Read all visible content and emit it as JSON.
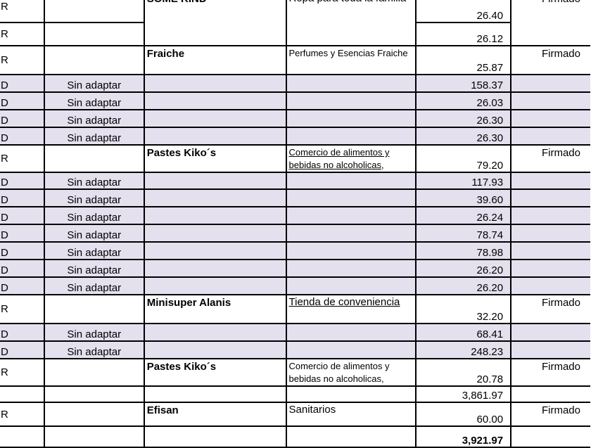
{
  "colors": {
    "shaded_row": "#e4e0ee",
    "border": "#000000"
  },
  "rows": [
    {
      "type": "R",
      "adapt": "",
      "name": "SOME KIND",
      "desc": "Ropa para toda la familia",
      "amount": "26.40",
      "status": "Firmado"
    },
    {
      "type": "R",
      "adapt": "",
      "amount": "26.12",
      "continues_above": true
    },
    {
      "type": "R",
      "adapt": "",
      "name": "Fraiche",
      "desc": "Perfumes y Esencias Fraiche",
      "amount": "25.87",
      "status": "Firmado"
    },
    {
      "type": "D",
      "adapt": "Sin adaptar",
      "name": "",
      "desc": "",
      "amount": "158.37",
      "status": "",
      "shaded": true
    },
    {
      "type": "D",
      "adapt": "Sin adaptar",
      "name": "",
      "desc": "",
      "amount": "26.03",
      "status": "",
      "shaded": true
    },
    {
      "type": "D",
      "adapt": "Sin adaptar",
      "name": "",
      "desc": "",
      "amount": "26.30",
      "status": "",
      "shaded": true
    },
    {
      "type": "D",
      "adapt": "Sin adaptar",
      "name": "",
      "desc": "",
      "amount": "26.30",
      "status": "",
      "shaded": true
    },
    {
      "type": "R",
      "adapt": "",
      "name": "Pastes Kiko´s",
      "desc": "Comercio de alimentos y bebidas no alcoholicas,",
      "amount": "79.20",
      "status": "Firmado"
    },
    {
      "type": "D",
      "adapt": "Sin adaptar",
      "name": "",
      "desc": "",
      "amount": "117.93",
      "status": "",
      "shaded": true
    },
    {
      "type": "D",
      "adapt": "Sin adaptar",
      "name": "",
      "desc": "",
      "amount": "39.60",
      "status": "",
      "shaded": true
    },
    {
      "type": "D",
      "adapt": "Sin adaptar",
      "name": "",
      "desc": "",
      "amount": "26.24",
      "status": "",
      "shaded": true
    },
    {
      "type": "D",
      "adapt": "Sin adaptar",
      "name": "",
      "desc": "",
      "amount": "78.74",
      "status": "",
      "shaded": true
    },
    {
      "type": "D",
      "adapt": "Sin adaptar",
      "name": "",
      "desc": "",
      "amount": "78.98",
      "status": "",
      "shaded": true
    },
    {
      "type": "D",
      "adapt": "Sin adaptar",
      "name": "",
      "desc": "",
      "amount": "26.20",
      "status": "",
      "shaded": true
    },
    {
      "type": "D",
      "adapt": "Sin adaptar",
      "name": "",
      "desc": "",
      "amount": "26.20",
      "status": "",
      "shaded": true
    },
    {
      "type": "R",
      "adapt": "",
      "name": "Minisuper Alanis",
      "desc": "Tienda de conveniencia",
      "amount": "32.20",
      "status": "Firmado"
    },
    {
      "type": "D",
      "adapt": "Sin adaptar",
      "name": "",
      "desc": "",
      "amount": "68.41",
      "status": "",
      "shaded": true
    },
    {
      "type": "D",
      "adapt": "Sin adaptar",
      "name": "",
      "desc": "",
      "amount": "248.23",
      "status": "",
      "shaded": true
    },
    {
      "type": "R",
      "adapt": "",
      "name": "Pastes Kiko´s",
      "desc": "Comercio de alimentos y bebidas no alcoholicas,",
      "amount": "20.78",
      "status": "Firmado"
    },
    {
      "type": "",
      "adapt": "",
      "name": "",
      "desc": "",
      "amount": "3,861.97",
      "status": "",
      "subtotal": true
    },
    {
      "type": "R",
      "adapt": "",
      "name": "Efisan",
      "desc": "Sanitarios",
      "amount": "60.00",
      "status": "Firmado"
    },
    {
      "type": "",
      "adapt": "",
      "name": "",
      "desc": "",
      "amount": "3,921.97",
      "status": "",
      "total": true
    }
  ]
}
